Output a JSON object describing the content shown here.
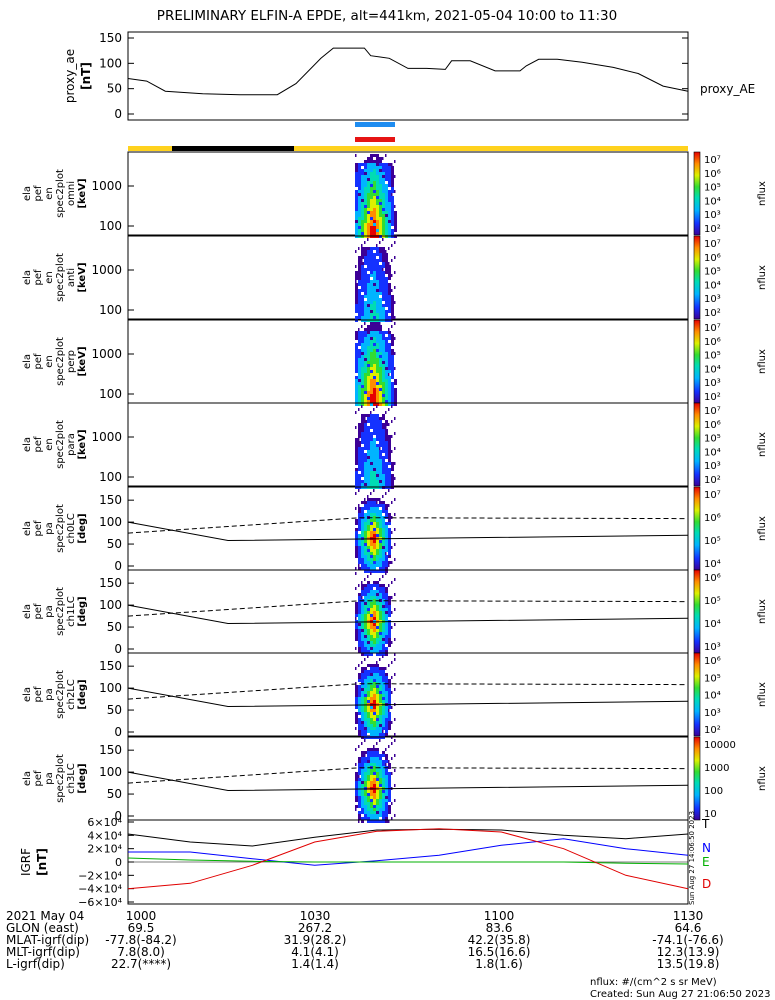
{
  "title": "PRELIMINARY ELFIN-A EPDE, alt=441km, 2021-05-04 10:00 to 11:30",
  "created": "Created: Sun Aug 27 21:06:50 2023",
  "unit_note": "nflux: #/(cm^2 s sr MeV)",
  "side_stamp": "Sun Aug 27 14:06:50 2023",
  "colors": {
    "yellow": "#ffd21e",
    "black": "#000000",
    "blue_bar": "#1e8cf0",
    "red_bar": "#e61414"
  },
  "chart_data": [
    {
      "type": "line",
      "panel": "proxy_ae",
      "ylabel": "proxy_ae [nT]",
      "series_label": "proxy_AE",
      "ylim": [
        0,
        150
      ],
      "yticks": [
        "150",
        "100",
        "50",
        "0"
      ],
      "x": [
        "10:00",
        "10:03",
        "10:06",
        "10:12",
        "10:18",
        "10:24",
        "10:27",
        "10:31",
        "10:33",
        "10:38",
        "10:39",
        "10:42",
        "10:45",
        "10:48",
        "10:51",
        "10:52",
        "10:55",
        "10:59",
        "11:03",
        "11:04",
        "11:06",
        "11:09",
        "11:13",
        "11:18",
        "11:22",
        "11:26",
        "11:30"
      ],
      "values": [
        70,
        65,
        45,
        40,
        38,
        38,
        60,
        110,
        130,
        130,
        115,
        110,
        90,
        90,
        88,
        105,
        105,
        85,
        85,
        95,
        108,
        108,
        102,
        92,
        80,
        55,
        45
      ]
    },
    {
      "type": "heatmap",
      "panel": "ela_pef_en_spec2plot_omni",
      "ylabel": "ela pef en spec2plot omni [keV]",
      "yticks": [
        "1000",
        "100"
      ],
      "colorbar": {
        "label": "nflux",
        "ticks": [
          "10⁷",
          "10⁶",
          "10⁵",
          "10⁴",
          "10³",
          "10²"
        ]
      }
    },
    {
      "type": "heatmap",
      "panel": "ela_pef_en_spec2plot_anti",
      "ylabel": "ela pef en spec2plot anti [keV]",
      "yticks": [
        "1000",
        "100"
      ],
      "colorbar": {
        "label": "nflux",
        "ticks": [
          "10⁷",
          "10⁶",
          "10⁵",
          "10⁴",
          "10³",
          "10²"
        ]
      }
    },
    {
      "type": "heatmap",
      "panel": "ela_pef_en_spec2plot_perp",
      "ylabel": "ela pef en spec2plot perp [keV]",
      "yticks": [
        "1000",
        "100"
      ],
      "colorbar": {
        "label": "nflux",
        "ticks": [
          "10⁷",
          "10⁶",
          "10⁵",
          "10⁴",
          "10³",
          "10²"
        ]
      }
    },
    {
      "type": "heatmap",
      "panel": "ela_pef_en_spec2plot_para",
      "ylabel": "ela pef en spec2plot para [keV]",
      "yticks": [
        "1000",
        "100"
      ],
      "colorbar": {
        "label": "nflux",
        "ticks": [
          "10⁷",
          "10⁶",
          "10⁵",
          "10⁴",
          "10³",
          "10²"
        ]
      }
    },
    {
      "type": "heatmap",
      "panel": "ela_pef_pa_spec2plot_ch0LC",
      "ylabel": "ela pef pa spec2plot ch0LC [deg]",
      "yticks": [
        "150",
        "100",
        "50",
        "0"
      ],
      "colorbar": {
        "label": "nflux",
        "ticks": [
          "10⁷",
          "10⁶",
          "10⁵",
          "10⁴"
        ]
      }
    },
    {
      "type": "heatmap",
      "panel": "ela_pef_pa_spec2plot_ch1LC",
      "ylabel": "ela pef pa spec2plot ch1LC [deg]",
      "yticks": [
        "150",
        "100",
        "50",
        "0"
      ],
      "colorbar": {
        "label": "nflux",
        "ticks": [
          "10⁶",
          "10⁵",
          "10⁴",
          "10³"
        ]
      }
    },
    {
      "type": "heatmap",
      "panel": "ela_pef_pa_spec2plot_ch2LC",
      "ylabel": "ela pef pa spec2plot ch2LC [deg]",
      "yticks": [
        "150",
        "100",
        "50",
        "0"
      ],
      "colorbar": {
        "label": "nflux",
        "ticks": [
          "10⁶",
          "10⁵",
          "10⁴",
          "10³",
          "10²"
        ]
      }
    },
    {
      "type": "heatmap",
      "panel": "ela_pef_pa_spec2plot_ch3LC",
      "ylabel": "ela pef pa spec2plot ch3LC [deg]",
      "yticks": [
        "150",
        "100",
        "50",
        "0"
      ],
      "colorbar": {
        "label": "nflux",
        "ticks": [
          "10000",
          "1000",
          "100",
          "10"
        ]
      }
    },
    {
      "type": "line",
      "panel": "IGRF",
      "ylabel": "IGRF [nT]",
      "ylim": [
        -60000,
        60000
      ],
      "yticks": [
        "6×10⁴",
        "4×10⁴",
        "2×10⁴",
        "0",
        "−2×10⁴",
        "−4×10⁴",
        "−6×10⁴"
      ],
      "x": [
        "10:00",
        "10:10",
        "10:20",
        "10:30",
        "10:40",
        "10:50",
        "11:00",
        "11:10",
        "11:20",
        "11:30"
      ],
      "series": [
        {
          "name": "T",
          "color": "#000000",
          "values": [
            42000,
            30000,
            24000,
            37000,
            48000,
            49000,
            48000,
            40000,
            35000,
            42000
          ]
        },
        {
          "name": "N",
          "color": "#0000ff",
          "values": [
            15000,
            15000,
            5000,
            -5000,
            2000,
            10000,
            25000,
            35000,
            20000,
            10000
          ]
        },
        {
          "name": "E",
          "color": "#00b000",
          "values": [
            6000,
            3000,
            1000,
            0,
            0,
            0,
            0,
            0,
            -2000,
            -3000
          ]
        },
        {
          "name": "D",
          "color": "#e00000",
          "values": [
            -40000,
            -32000,
            -5000,
            30000,
            46000,
            50000,
            45000,
            20000,
            -20000,
            -40000
          ]
        }
      ]
    }
  ],
  "xaxis": {
    "rows": [
      {
        "label": "2021 May 04",
        "values": [
          "1000",
          "1030",
          "1100",
          "1130"
        ]
      },
      {
        "label": "GLON (east)",
        "values": [
          "69.5",
          "267.2",
          "83.6",
          "64.6"
        ]
      },
      {
        "label": "MLAT-igrf(dip)",
        "values": [
          "-77.8(-84.2)",
          "31.9(28.2)",
          "42.2(35.8)",
          "-74.1(-76.6)"
        ]
      },
      {
        "label": "MLT-igrf(dip)",
        "values": [
          "7.8(8.0)",
          "4.1(4.1)",
          "16.5(16.6)",
          "12.3(13.9)"
        ]
      },
      {
        "label": "L-igrf(dip)",
        "values": [
          "22.7(****)",
          "1.4(1.4)",
          "1.8(1.6)",
          "13.5(19.8)"
        ]
      }
    ]
  }
}
